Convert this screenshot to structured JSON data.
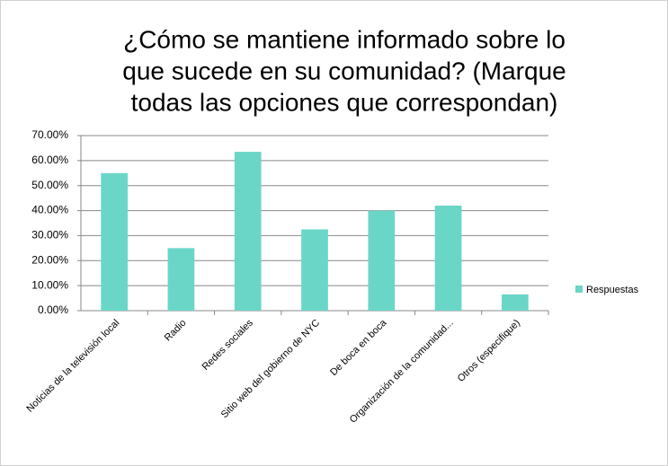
{
  "chart_data": {
    "type": "bar",
    "title": [
      "¿Cómo se mantiene informado sobre lo",
      "que sucede en su comunidad? (Marque",
      "todas las opciones que correspondan)"
    ],
    "categories": [
      "Noticias de la televisión local",
      "Radio",
      "Redes sociales",
      "Sitio web del gobierno de NYC",
      "De boca en boca",
      "Organización de la comunidad...",
      "Otros (especifique)"
    ],
    "series": [
      {
        "name": "Respuestas",
        "color": "#6ad6c8",
        "values": [
          55,
          25,
          63.5,
          32.5,
          40,
          42,
          6.5
        ]
      }
    ],
    "ylim": [
      0,
      70
    ],
    "yticks": [
      {
        "value": 0,
        "label": "0.00%"
      },
      {
        "value": 10,
        "label": "10.00%"
      },
      {
        "value": 20,
        "label": "20.00%"
      },
      {
        "value": 30,
        "label": "30.00%"
      },
      {
        "value": 40,
        "label": "40.00%"
      },
      {
        "value": 50,
        "label": "50.00%"
      },
      {
        "value": 60,
        "label": "60.00%"
      },
      {
        "value": 70,
        "label": "70.00%"
      }
    ],
    "grid": true,
    "legend": "right"
  }
}
